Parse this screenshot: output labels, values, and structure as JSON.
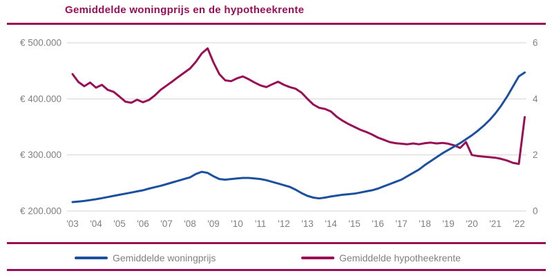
{
  "title": "Gemiddelde woningprijs en de hypotheekrente",
  "colors": {
    "accent": "#9A0E56",
    "price_line": "#1C509E",
    "rate_line": "#9A0E56",
    "grid_line": "#D3D3D3",
    "axis_text": "#808080",
    "legend_text": "#808080",
    "background": "#FFFFFF"
  },
  "legend": {
    "items": [
      {
        "label": "Gemiddelde woningprijs",
        "color": "#1C509E"
      },
      {
        "label": "Gemiddelde hypotheekrente",
        "color": "#9A0E56"
      }
    ]
  },
  "chart_data": {
    "type": "line",
    "title": "Gemiddelde woningprijs en de hypotheekrente",
    "grid": true,
    "legend_position": "bottom",
    "x": {
      "start": 2003,
      "step": 0.25,
      "count": 78,
      "unit": "year, quarterly points from 2003 Q1 to 2022 Q2"
    },
    "x_tick_labels": [
      "'03",
      "'04",
      "'05",
      "'06",
      "'07",
      "'08",
      "'09",
      "'10",
      "'11",
      "'12",
      "'13",
      "'14",
      "'15",
      "'16",
      "'17",
      "'18",
      "'19",
      "'20",
      "'21",
      "'22"
    ],
    "left_axis": {
      "min": 200000,
      "max": 500000,
      "tick_values": [
        500000,
        400000,
        300000,
        200000
      ],
      "tick_labels": [
        "€ 500.000",
        "€ 400.000",
        "€ 300.000",
        "€ 200.000"
      ]
    },
    "right_axis": {
      "min": 0,
      "max": 6,
      "tick_values": [
        6,
        4,
        2,
        0
      ],
      "tick_labels": [
        "6",
        "4",
        "2",
        "0"
      ]
    },
    "series": [
      {
        "name": "Gemiddelde hypotheekrente",
        "axis": "right",
        "color": "#9A0E56",
        "values": [
          4.88,
          4.6,
          4.45,
          4.58,
          4.4,
          4.5,
          4.32,
          4.25,
          4.08,
          3.9,
          3.86,
          3.97,
          3.88,
          3.96,
          4.12,
          4.32,
          4.47,
          4.62,
          4.78,
          4.93,
          5.08,
          5.32,
          5.62,
          5.8,
          5.3,
          4.88,
          4.66,
          4.63,
          4.73,
          4.8,
          4.7,
          4.58,
          4.48,
          4.42,
          4.52,
          4.61,
          4.5,
          4.42,
          4.36,
          4.22,
          4.0,
          3.8,
          3.68,
          3.64,
          3.55,
          3.36,
          3.22,
          3.1,
          3.0,
          2.9,
          2.82,
          2.73,
          2.62,
          2.54,
          2.46,
          2.42,
          2.4,
          2.38,
          2.41,
          2.38,
          2.42,
          2.44,
          2.41,
          2.43,
          2.4,
          2.34,
          2.25,
          2.46,
          2.0,
          1.96,
          1.94,
          1.92,
          1.9,
          1.86,
          1.8,
          1.72,
          1.68,
          3.35
        ]
      },
      {
        "name": "Gemiddelde woningprijs",
        "axis": "left",
        "color": "#1C509E",
        "values": [
          216000,
          217000,
          218000,
          219500,
          221000,
          223000,
          225000,
          227000,
          229000,
          231000,
          233000,
          235000,
          237000,
          240000,
          242500,
          245000,
          248000,
          251000,
          254000,
          257000,
          260000,
          266000,
          270000,
          268000,
          262000,
          257000,
          256000,
          257000,
          258000,
          259000,
          259000,
          258000,
          257000,
          255000,
          252000,
          249000,
          246000,
          243000,
          238000,
          232000,
          227000,
          224000,
          222500,
          224000,
          226000,
          227500,
          229000,
          230000,
          231000,
          233000,
          235000,
          237000,
          240000,
          244000,
          248000,
          252000,
          256000,
          262000,
          268000,
          274000,
          282000,
          289000,
          296000,
          303000,
          309000,
          315000,
          321000,
          328000,
          335000,
          343000,
          352000,
          362000,
          374000,
          388000,
          404000,
          422000,
          440000,
          447000
        ]
      }
    ]
  }
}
